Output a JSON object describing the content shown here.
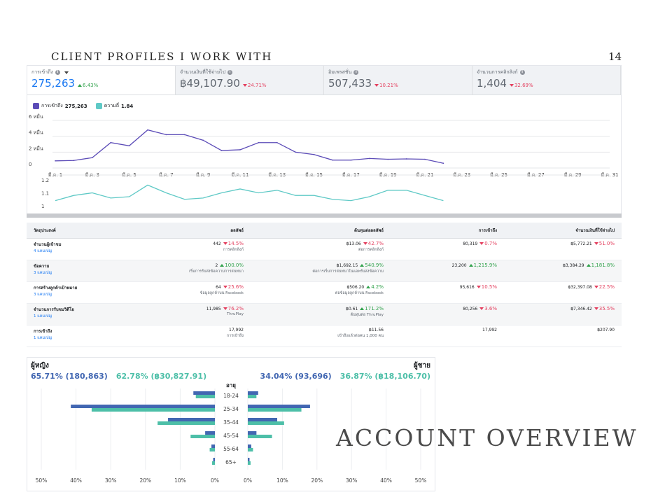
{
  "slide": {
    "title": "CLIENT PROFILES I WORK WITH",
    "page_number": "14",
    "section_title": "ACCOUNT OVERVIEW"
  },
  "colors": {
    "reach": "#5b4bb7",
    "frequency": "#5fc9c6",
    "female_bar": "#4267b2",
    "male_bar": "#4dbfa8",
    "accent": "#1877f2"
  },
  "metrics": [
    {
      "label": "การเข้าถึง",
      "value": "275,263",
      "delta": "6.43%",
      "direction": "up",
      "active": true
    },
    {
      "label": "จำนวนเงินที่ใช้จ่ายไป",
      "value": "฿49,107.90",
      "delta": "24.71%",
      "direction": "down",
      "active": false
    },
    {
      "label": "อิมเพรสชั่น",
      "value": "507,433",
      "delta": "10.21%",
      "direction": "down",
      "active": false
    },
    {
      "label": "จำนวนการคลิกลิงก์",
      "value": "1,404",
      "delta": "32.69%",
      "direction": "down",
      "active": false
    }
  ],
  "legend": [
    {
      "label": "การเข้าถึง",
      "value": "275,263"
    },
    {
      "label": "ความถี่",
      "value": "1.84"
    }
  ],
  "chart_data": [
    {
      "type": "line",
      "ylim": [
        0,
        60000
      ],
      "y_ticks": [
        0,
        20000,
        40000,
        60000
      ],
      "y_tick_labels": [
        "0",
        "2 หมื่น",
        "4 หมื่น",
        "6 หมื่น"
      ],
      "x_days": 31,
      "x_tick_labels": [
        "มี.ค. 1",
        "มี.ค. 3",
        "มี.ค. 5",
        "มี.ค. 7",
        "มี.ค. 9",
        "มี.ค. 11",
        "มี.ค. 13",
        "มี.ค. 15",
        "มี.ค. 17",
        "มี.ค. 19",
        "มี.ค. 21",
        "มี.ค. 23",
        "มี.ค. 25",
        "มี.ค. 27",
        "มี.ค. 29",
        "มี.ค. 31"
      ],
      "series": [
        {
          "name": "การเข้าถึง",
          "x": [
            1,
            2,
            3,
            4,
            5,
            6,
            7,
            8,
            9,
            10,
            11,
            12,
            13,
            14,
            15,
            16,
            17,
            18,
            19,
            20,
            21,
            22
          ],
          "values": [
            9000,
            9500,
            13000,
            32000,
            28000,
            48000,
            42000,
            42000,
            35000,
            22000,
            23000,
            32000,
            32000,
            20000,
            17000,
            10000,
            10000,
            12000,
            11000,
            11500,
            11000,
            6000
          ]
        }
      ]
    },
    {
      "type": "line",
      "ylim": [
        1,
        1.2
      ],
      "y_ticks": [
        1,
        1.1,
        1.2
      ],
      "y_tick_labels": [
        "1",
        "1.1",
        "1.2"
      ],
      "series": [
        {
          "name": "ความถี่",
          "x": [
            1,
            2,
            3,
            4,
            5,
            6,
            7,
            8,
            9,
            10,
            11,
            12,
            13,
            14,
            15,
            16,
            17,
            18,
            19,
            20,
            21,
            22
          ],
          "values": [
            1.04,
            1.08,
            1.1,
            1.06,
            1.07,
            1.16,
            1.1,
            1.05,
            1.06,
            1.1,
            1.13,
            1.1,
            1.12,
            1.08,
            1.08,
            1.05,
            1.04,
            1.07,
            1.12,
            1.12,
            1.08,
            1.04
          ]
        }
      ]
    },
    {
      "type": "bar",
      "orientation": "horizontal-butterfly",
      "categories": [
        "18-24",
        "25-34",
        "35-44",
        "45-54",
        "55-64",
        "65+"
      ],
      "x_ticks_left": [
        "50%",
        "40%",
        "30%",
        "20%",
        "10%",
        "0%"
      ],
      "x_ticks_right": [
        "0%",
        "10%",
        "20%",
        "30%",
        "40%",
        "50%"
      ],
      "axis_title": "อายุ",
      "series": [
        {
          "name": "ผู้หญิง reach",
          "side": "left",
          "values": [
            6.2,
            41.5,
            13.5,
            2.8,
            1.0,
            0.5
          ]
        },
        {
          "name": "ผู้หญิง spend",
          "side": "left",
          "values": [
            5.5,
            35.5,
            16.5,
            7.0,
            1.5,
            0.8
          ]
        },
        {
          "name": "ผู้ชาย reach",
          "side": "right",
          "values": [
            3.0,
            18.0,
            8.5,
            2.5,
            1.0,
            0.5
          ]
        },
        {
          "name": "ผู้ชาย spend",
          "side": "right",
          "values": [
            2.5,
            15.5,
            10.5,
            7.0,
            1.5,
            0.8
          ]
        }
      ],
      "xlim": [
        0,
        50
      ]
    }
  ],
  "table": {
    "headers": [
      "วัตถุประสงค์",
      "ผลลัพธ์",
      "ต้นทุนต่อผลลัพธ์",
      "การเข้าถึง",
      "จำนวนเงินที่ใช้จ่ายไป"
    ],
    "rows": [
      {
        "name": "จำนวนผู้เข้าชม",
        "link": "4 แคมเปญ",
        "result": "442",
        "result_delta": "14.5%",
        "result_dir": "down",
        "result_sub": "การคลิกลิงก์",
        "cost": "฿13.06",
        "cost_delta": "42.7%",
        "cost_dir": "down",
        "cost_sub": "ต่อการคลิกลิงก์",
        "reach": "80,319",
        "reach_delta": "0.7%",
        "reach_dir": "down",
        "spend": "฿5,772.21",
        "spend_delta": "51.0%",
        "spend_dir": "down"
      },
      {
        "name": "ข้อความ",
        "link": "3 แคมเปญ",
        "result": "2",
        "result_delta": "100.0%",
        "result_dir": "up",
        "result_sub": "เริ่มการรับส่งข้อความการสนทนา",
        "cost": "฿1,692.15",
        "cost_delta": "540.9%",
        "cost_dir": "up",
        "cost_sub": "ต่อการเริ่มการสนทนาในแอพรับส่งข้อความ",
        "reach": "23,200",
        "reach_delta": "1,215.9%",
        "reach_dir": "up",
        "spend": "฿3,384.29",
        "spend_delta": "1,181.8%",
        "spend_dir": "up"
      },
      {
        "name": "การสร้างลูกค้าเป้าหมาย",
        "link": "3 แคมเปญ",
        "result": "64",
        "result_delta": "25.6%",
        "result_dir": "down",
        "result_sub": "ข้อมูลลูกค้าบน Facebook",
        "cost": "฿506.20",
        "cost_delta": "4.2%",
        "cost_dir": "up",
        "cost_sub": "ต่อข้อมูลลูกค้าบน Facebook",
        "reach": "95,616",
        "reach_delta": "10.5%",
        "reach_dir": "down",
        "spend": "฿32,397.08",
        "spend_delta": "22.5%",
        "spend_dir": "down"
      },
      {
        "name": "จำนวนการรับชมวิดีโอ",
        "link": "1 แคมเปญ",
        "result": "11,985",
        "result_delta": "76.2%",
        "result_dir": "down",
        "result_sub": "ThruPlay",
        "cost": "฿0.61",
        "cost_delta": "171.2%",
        "cost_dir": "up",
        "cost_sub": "ต้นทุนต่อ ThruPlay",
        "reach": "80,256",
        "reach_delta": "3.6%",
        "reach_dir": "down",
        "spend": "฿7,346.42",
        "spend_delta": "35.5%",
        "spend_dir": "down"
      },
      {
        "name": "การเข้าถึง",
        "link": "1 แคมเปญ",
        "result": "17,992",
        "result_delta": "",
        "result_dir": "",
        "result_sub": "การเข้าถึง",
        "cost": "฿11.56",
        "cost_delta": "",
        "cost_dir": "",
        "cost_sub": "เข้าถึงแล้วต่อคน 1,000 คน",
        "reach": "17,992",
        "reach_delta": "",
        "reach_dir": "",
        "spend": "฿207.90",
        "spend_delta": "",
        "spend_dir": ""
      }
    ]
  },
  "demographics": {
    "female": {
      "label": "ผู้หญิง",
      "reach_stat": "65.71% (180,863)",
      "spend_stat": "62.78% (฿30,827.91)"
    },
    "male": {
      "label": "ผู้ชาย",
      "reach_stat": "34.04% (93,696)",
      "spend_stat": "36.87% (฿18,106.70)"
    }
  }
}
